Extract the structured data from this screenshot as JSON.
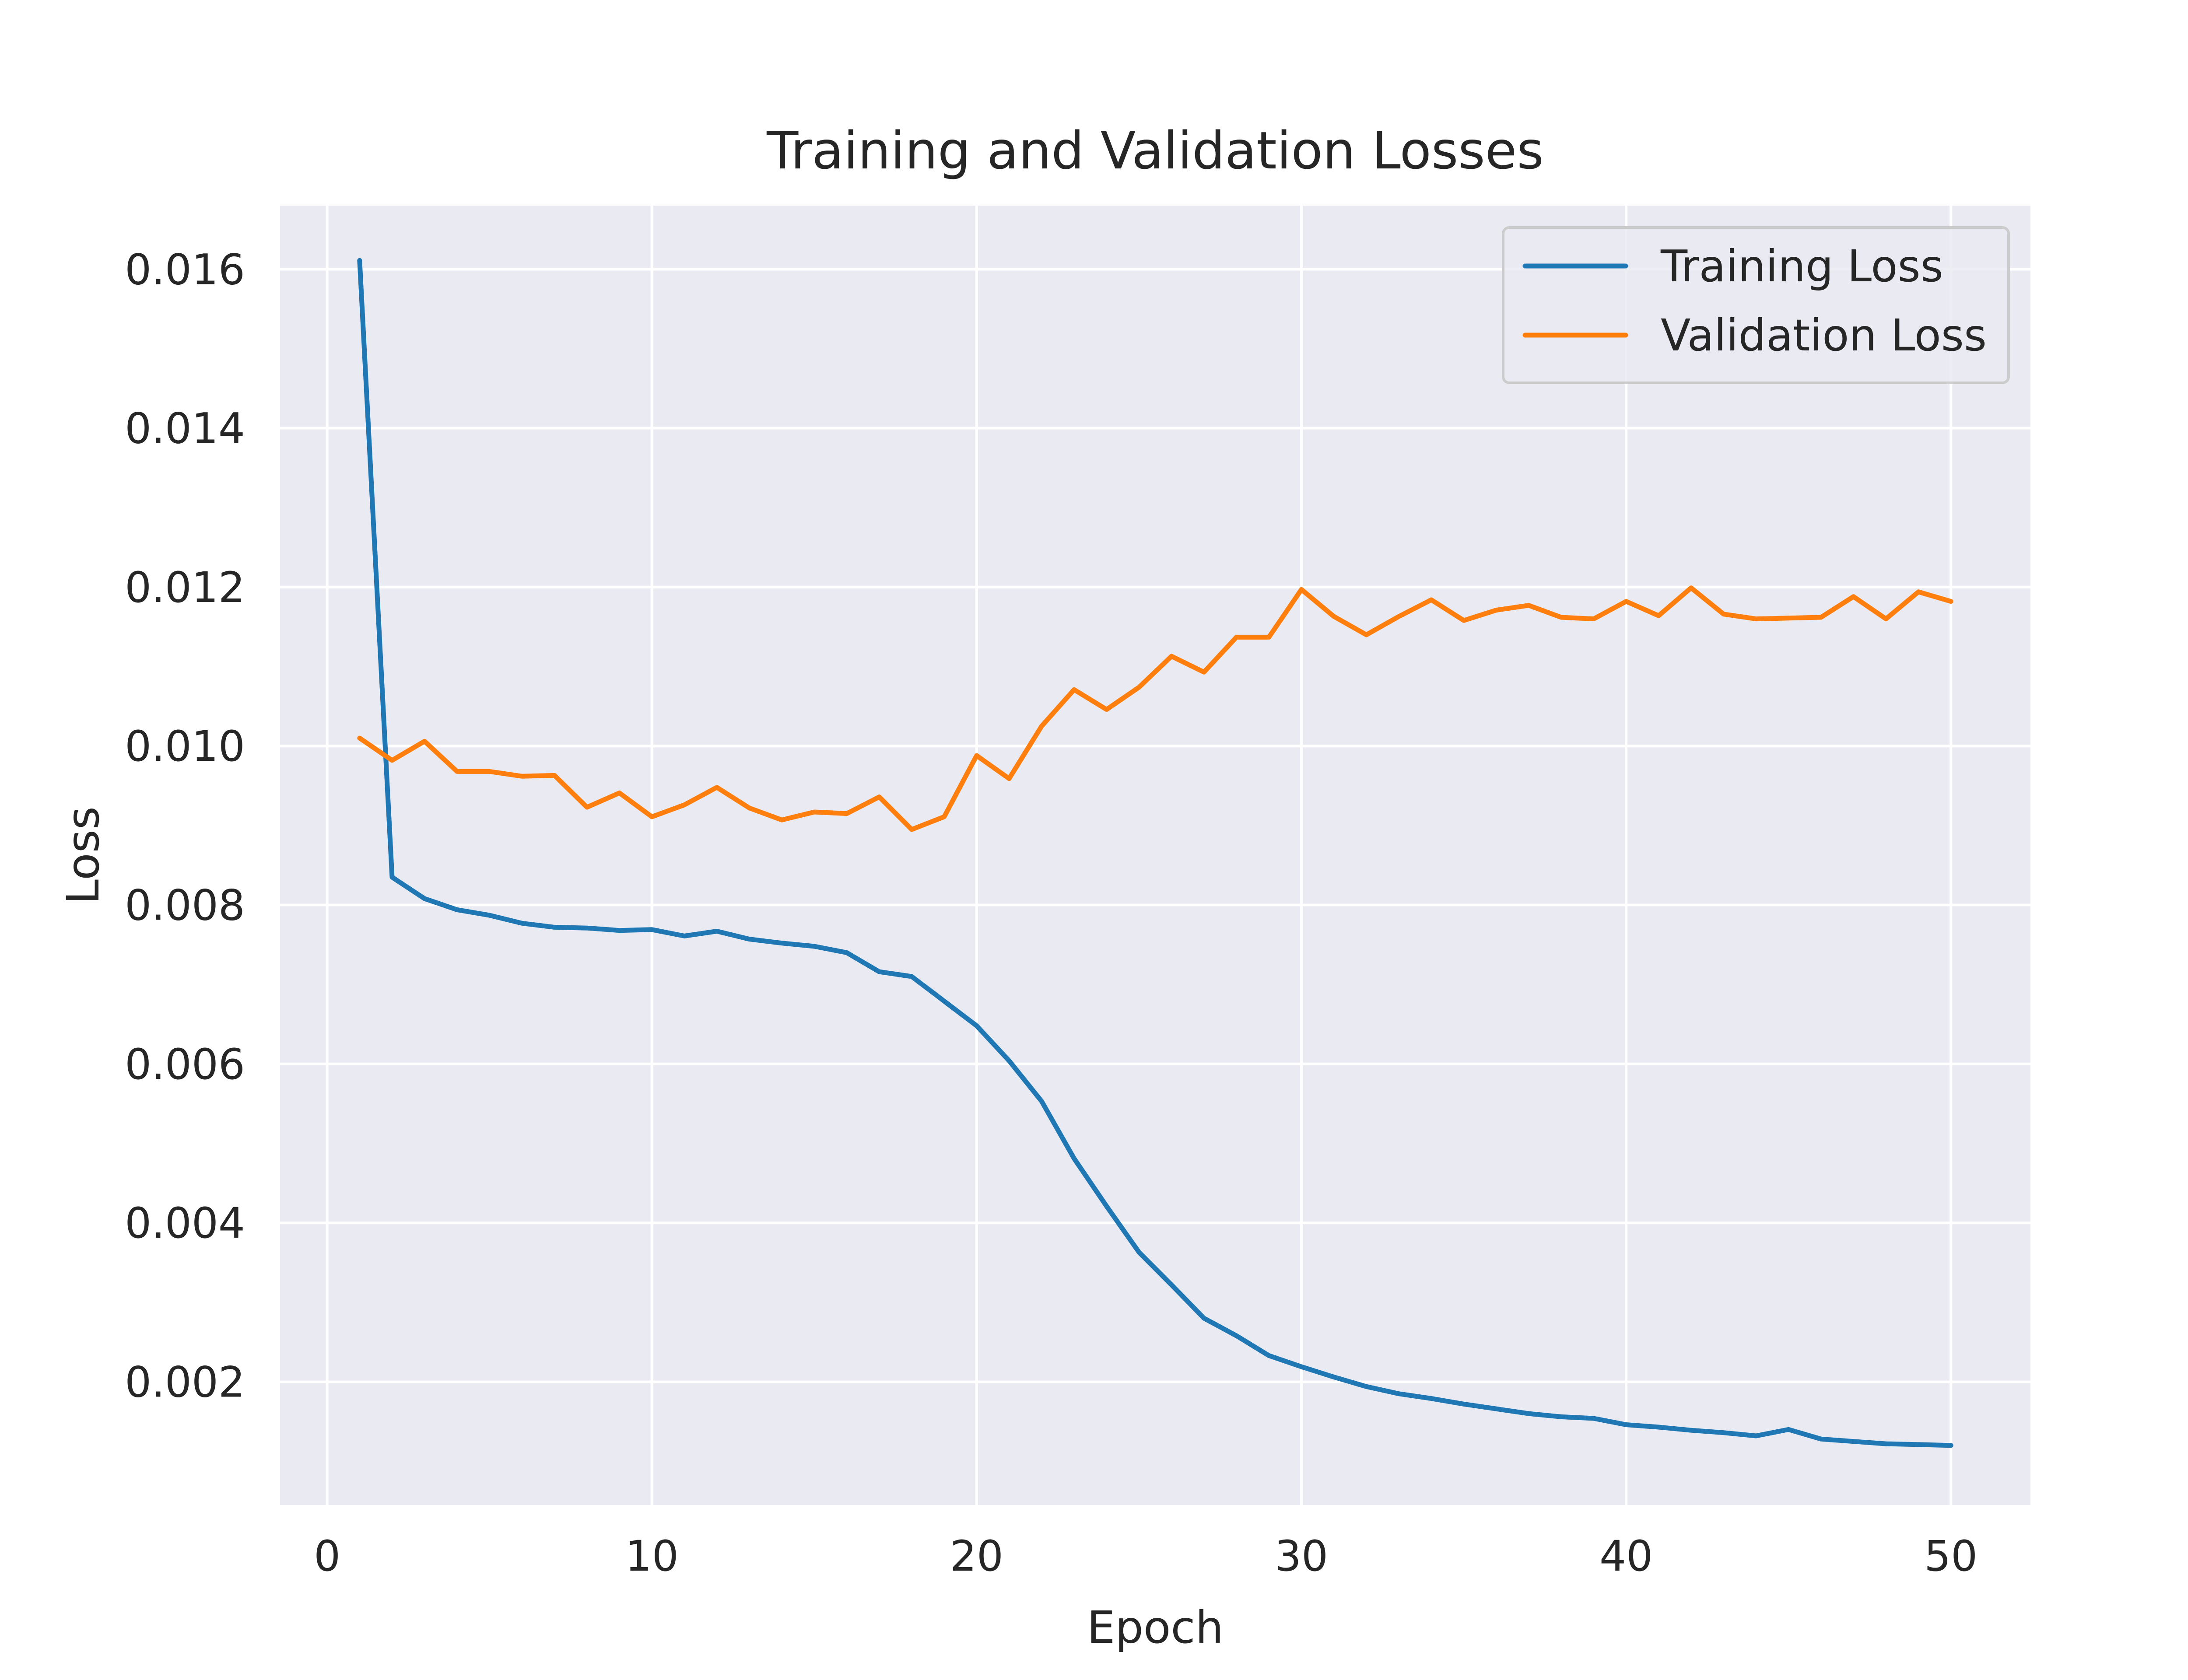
{
  "chart_data": {
    "type": "line",
    "title": "Training and Validation Losses",
    "xlabel": "Epoch",
    "ylabel": "Loss",
    "xlim": [
      -1.45,
      52.45
    ],
    "ylim": [
      0.00045,
      0.0168
    ],
    "x_ticks": [
      0,
      10,
      20,
      30,
      40,
      50
    ],
    "x_tick_labels": [
      "0",
      "10",
      "20",
      "30",
      "40",
      "50"
    ],
    "y_ticks": [
      0.002,
      0.004,
      0.006,
      0.008,
      0.01,
      0.012,
      0.014,
      0.016
    ],
    "y_tick_labels": [
      "0.002",
      "0.004",
      "0.006",
      "0.008",
      "0.010",
      "0.012",
      "0.014",
      "0.016"
    ],
    "grid": true,
    "legend_position": "top-right",
    "background_color": "#eaeaf2",
    "grid_color": "#ffffff",
    "x": [
      1,
      2,
      3,
      4,
      5,
      6,
      7,
      8,
      9,
      10,
      11,
      12,
      13,
      14,
      15,
      16,
      17,
      18,
      19,
      20,
      21,
      22,
      23,
      24,
      25,
      26,
      27,
      28,
      29,
      30,
      31,
      32,
      33,
      34,
      35,
      36,
      37,
      38,
      39,
      40,
      41,
      42,
      43,
      44,
      45,
      46,
      47,
      48,
      49,
      50
    ],
    "series": [
      {
        "name": "Training Loss",
        "color": "#1f77b4",
        "values": [
          0.01611,
          0.00835,
          0.00808,
          0.00794,
          0.00787,
          0.00777,
          0.00772,
          0.00771,
          0.00768,
          0.00769,
          0.00761,
          0.00767,
          0.00757,
          0.00752,
          0.00748,
          0.0074,
          0.00716,
          0.0071,
          0.00679,
          0.00648,
          0.00604,
          0.00553,
          0.00481,
          0.00421,
          0.00363,
          0.00322,
          0.0028,
          0.00258,
          0.00233,
          0.00219,
          0.00206,
          0.00194,
          0.00185,
          0.00179,
          0.00172,
          0.00166,
          0.0016,
          0.00156,
          0.00154,
          0.00146,
          0.00143,
          0.00139,
          0.00136,
          0.00132,
          0.0014,
          0.00128,
          0.00125,
          0.00122,
          0.00121,
          0.0012
        ]
      },
      {
        "name": "Validation Loss",
        "color": "#ff7f0e",
        "values": [
          0.0101,
          0.00982,
          0.01006,
          0.00968,
          0.00968,
          0.00962,
          0.00963,
          0.00923,
          0.00941,
          0.00911,
          0.00926,
          0.00948,
          0.00922,
          0.00907,
          0.00917,
          0.00915,
          0.00936,
          0.00895,
          0.00911,
          0.00988,
          0.00959,
          0.01025,
          0.01071,
          0.01046,
          0.01074,
          0.01113,
          0.01093,
          0.01137,
          0.01137,
          0.01197,
          0.01163,
          0.0114,
          0.01163,
          0.01184,
          0.01158,
          0.01171,
          0.01177,
          0.01162,
          0.0116,
          0.01182,
          0.01164,
          0.01199,
          0.01166,
          0.0116,
          0.01161,
          0.01162,
          0.01188,
          0.0116,
          0.01194,
          0.01182
        ]
      }
    ]
  }
}
